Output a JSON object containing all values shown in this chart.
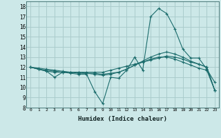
{
  "xlabel": "Humidex (Indice chaleur)",
  "background_color": "#cce8e8",
  "grid_color": "#aacccc",
  "line_color": "#1a6b6b",
  "xlim": [
    -0.5,
    23.5
  ],
  "ylim": [
    8,
    18.5
  ],
  "yticks": [
    8,
    9,
    10,
    11,
    12,
    13,
    14,
    15,
    16,
    17,
    18
  ],
  "xticks": [
    0,
    1,
    2,
    3,
    4,
    5,
    6,
    7,
    8,
    9,
    10,
    11,
    12,
    13,
    14,
    15,
    16,
    17,
    18,
    19,
    20,
    21,
    22,
    23
  ],
  "series": [
    {
      "x": [
        0,
        1,
        2,
        3,
        4,
        5,
        6,
        7,
        8,
        9,
        10,
        11,
        12,
        13,
        14,
        15,
        16,
        17,
        18,
        19,
        20,
        21,
        22,
        23
      ],
      "y": [
        12.0,
        11.8,
        11.6,
        11.0,
        11.5,
        11.4,
        11.3,
        11.3,
        9.6,
        8.4,
        11.0,
        10.9,
        11.7,
        13.0,
        11.7,
        17.0,
        17.8,
        17.3,
        15.8,
        13.8,
        12.9,
        12.9,
        11.8,
        10.5
      ]
    },
    {
      "x": [
        0,
        1,
        2,
        3,
        4,
        5,
        6,
        7,
        8,
        9,
        10,
        11,
        12,
        13,
        14,
        15,
        16,
        17,
        18,
        19,
        20,
        21,
        22,
        23
      ],
      "y": [
        12.0,
        11.8,
        11.6,
        11.5,
        11.5,
        11.5,
        11.5,
        11.5,
        11.5,
        11.5,
        11.7,
        11.9,
        12.1,
        12.3,
        12.5,
        12.7,
        12.9,
        13.1,
        13.0,
        12.8,
        12.5,
        12.3,
        12.0,
        9.7
      ]
    },
    {
      "x": [
        0,
        1,
        2,
        3,
        4,
        5,
        6,
        7,
        8,
        9,
        10,
        11,
        12,
        13,
        14,
        15,
        16,
        17,
        18,
        19,
        20,
        21,
        22,
        23
      ],
      "y": [
        12.0,
        11.8,
        11.7,
        11.6,
        11.5,
        11.5,
        11.4,
        11.4,
        11.3,
        11.2,
        11.3,
        11.5,
        11.8,
        12.2,
        12.6,
        13.0,
        13.3,
        13.5,
        13.3,
        13.0,
        12.6,
        12.3,
        12.0,
        9.7
      ]
    },
    {
      "x": [
        0,
        1,
        2,
        3,
        4,
        5,
        6,
        7,
        8,
        9,
        10,
        11,
        12,
        13,
        14,
        15,
        16,
        17,
        18,
        19,
        20,
        21,
        22,
        23
      ],
      "y": [
        12.0,
        11.9,
        11.8,
        11.7,
        11.6,
        11.5,
        11.5,
        11.4,
        11.4,
        11.3,
        11.4,
        11.5,
        11.8,
        12.2,
        12.5,
        12.8,
        13.0,
        13.0,
        12.8,
        12.5,
        12.2,
        11.9,
        11.7,
        9.7
      ]
    }
  ]
}
